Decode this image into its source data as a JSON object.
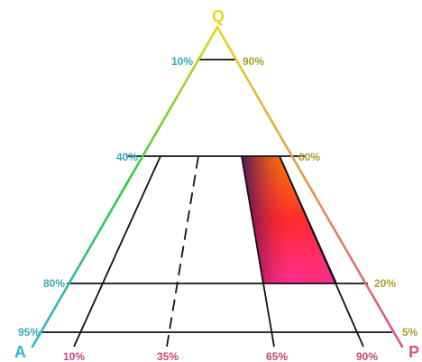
{
  "vertices": {
    "top": "Q",
    "left": "A",
    "right": "P"
  },
  "left_labels": [
    "10%",
    "40%",
    "80%",
    "95%"
  ],
  "right_labels": [
    "90%",
    "60%",
    "20%",
    "5%"
  ],
  "bottom_labels": [
    "10%",
    "35%",
    "65%",
    "90%"
  ],
  "colors": {
    "vertex_q": "#e8d41c",
    "vertex_a": "#32b4d8",
    "vertex_p": "#e0508c",
    "left_edge_mid": "#2ecc40",
    "left_label": "#3aa8b8",
    "right_label": "#a8a02c",
    "bottom_label": "#c04878",
    "region_top": "#ff8800",
    "region_mid": "#ff2a2a",
    "region_bottom_left": "#3a0a6a",
    "region_bottom_right": "#ff2d9a",
    "grid_line": "#111111"
  }
}
